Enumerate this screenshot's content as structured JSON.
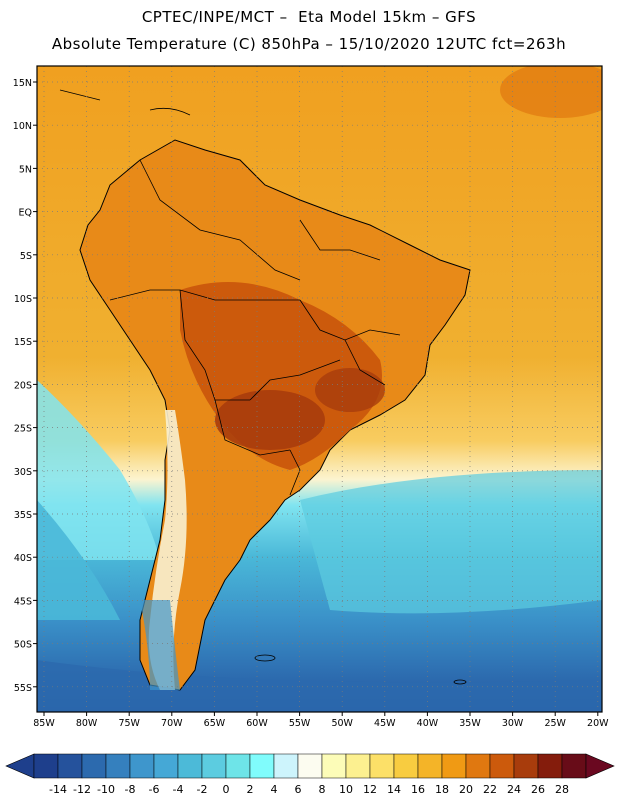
{
  "header": {
    "line1": "CPTEC/INPE/MCT –  Eta Model 15km – GFS",
    "line2": "Absolute Temperature (C) 850hPa – 15/10/2020 12UTC fct=263h"
  },
  "map": {
    "lat_labels": [
      "15N",
      "10N",
      "5N",
      "EQ",
      "5S",
      "10S",
      "15S",
      "20S",
      "25S",
      "30S",
      "35S",
      "40S",
      "45S",
      "50S",
      "55S"
    ],
    "lon_labels": [
      "85W",
      "80W",
      "75W",
      "70W",
      "65W",
      "60W",
      "55W",
      "50W",
      "45W",
      "40W",
      "35W",
      "30W",
      "25W",
      "20W"
    ],
    "ocean_color": "#f0a020",
    "land_color": "#d85a10",
    "hot_color": "#b8420e",
    "cold_color": "#4ab8d8",
    "deep_cold_color": "#2a70b8"
  },
  "legend": {
    "labels": [
      "-14",
      "-12",
      "-10",
      "-8",
      "-6",
      "-4",
      "-2",
      "0",
      "2",
      "4",
      "6",
      "8",
      "10",
      "12",
      "14",
      "16",
      "18",
      "20",
      "22",
      "24",
      "26",
      "28"
    ],
    "colors": [
      "#1e3f8c",
      "#25529c",
      "#2c6aae",
      "#3580be",
      "#3e96cc",
      "#45a8d6",
      "#4cbad8",
      "#5ccce0",
      "#6ee4e8",
      "#80fcfc",
      "#cdf4fc",
      "#fcfcf0",
      "#fcfcb8",
      "#fcf090",
      "#fce068",
      "#f8cc40",
      "#f4b428",
      "#f09a14",
      "#e07810",
      "#cc5a0c",
      "#a83c0c",
      "#841c0c",
      "#680c18"
    ]
  }
}
